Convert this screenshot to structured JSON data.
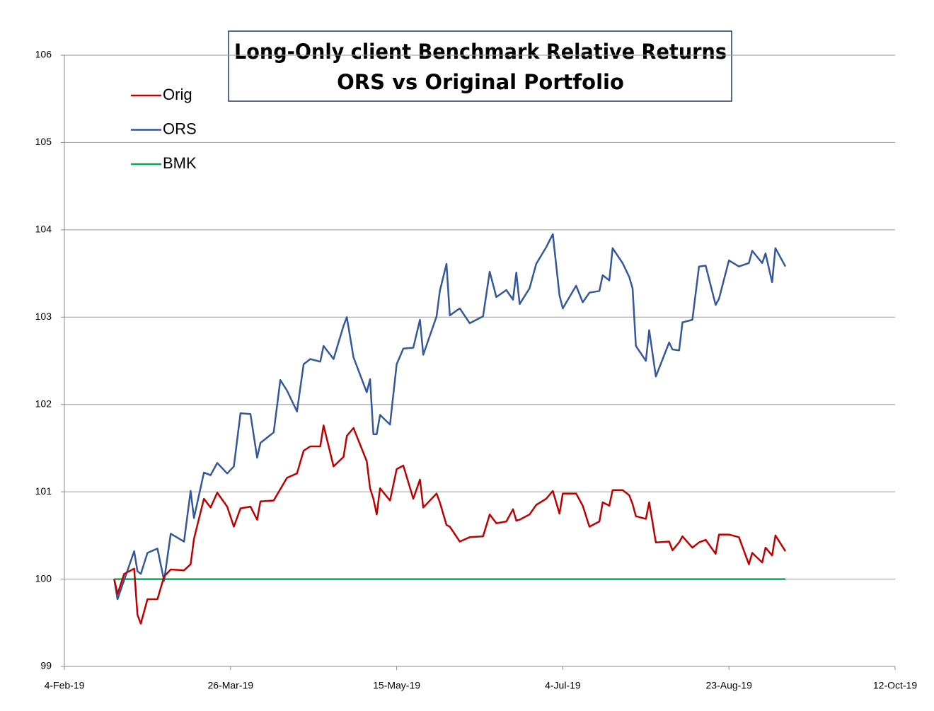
{
  "chart_data": {
    "type": "line",
    "title": "Long-Only client Benchmark Relative Returns",
    "subtitle": "ORS vs Original Portfolio",
    "x": [
      "2019-02-19",
      "2019-02-20",
      "2019-02-22",
      "2019-02-25",
      "2019-02-26",
      "2019-02-27",
      "2019-03-01",
      "2019-03-04",
      "2019-03-06",
      "2019-03-08",
      "2019-03-12",
      "2019-03-14",
      "2019-03-15",
      "2019-03-18",
      "2019-03-20",
      "2019-03-22",
      "2019-03-25",
      "2019-03-27",
      "2019-03-29",
      "2019-04-01",
      "2019-04-03",
      "2019-04-04",
      "2019-04-08",
      "2019-04-10",
      "2019-04-12",
      "2019-04-15",
      "2019-04-17",
      "2019-04-19",
      "2019-04-22",
      "2019-04-23",
      "2019-04-26",
      "2019-04-29",
      "2019-04-30",
      "2019-05-02",
      "2019-05-06",
      "2019-05-07",
      "2019-05-08",
      "2019-05-09",
      "2019-05-10",
      "2019-05-13",
      "2019-05-15",
      "2019-05-17",
      "2019-05-20",
      "2019-05-22",
      "2019-05-23",
      "2019-05-27",
      "2019-05-28",
      "2019-05-30",
      "2019-05-31",
      "2019-06-03",
      "2019-06-06",
      "2019-06-10",
      "2019-06-12",
      "2019-06-14",
      "2019-06-17",
      "2019-06-19",
      "2019-06-20",
      "2019-06-21",
      "2019-06-24",
      "2019-06-26",
      "2019-06-29",
      "2019-07-01",
      "2019-07-03",
      "2019-07-04",
      "2019-07-08",
      "2019-07-10",
      "2019-07-12",
      "2019-07-15",
      "2019-07-16",
      "2019-07-18",
      "2019-07-19",
      "2019-07-22",
      "2019-07-24",
      "2019-07-25",
      "2019-07-26",
      "2019-07-29",
      "2019-07-30",
      "2019-08-01",
      "2019-08-05",
      "2019-08-06",
      "2019-08-08",
      "2019-08-09",
      "2019-08-12",
      "2019-08-14",
      "2019-08-16",
      "2019-08-19",
      "2019-08-20",
      "2019-08-23",
      "2019-08-26",
      "2019-08-29",
      "2019-08-30",
      "2019-09-02",
      "2019-09-03",
      "2019-09-05",
      "2019-09-06",
      "2019-09-09"
    ],
    "series": [
      {
        "name": "Orig",
        "color": "#c00000",
        "values": [
          100,
          99.83,
          100.06,
          100.12,
          99.59,
          99.49,
          99.77,
          99.77,
          100.03,
          100.11,
          100.1,
          100.17,
          100.46,
          100.92,
          100.82,
          100.99,
          100.83,
          100.6,
          100.81,
          100.83,
          100.68,
          100.89,
          100.9,
          101.03,
          101.16,
          101.21,
          101.47,
          101.52,
          101.52,
          101.76,
          101.29,
          101.4,
          101.64,
          101.73,
          101.35,
          101.04,
          100.92,
          100.74,
          101.04,
          100.9,
          101.26,
          101.3,
          100.92,
          101.14,
          100.82,
          100.98,
          100.88,
          100.62,
          100.6,
          100.43,
          100.48,
          100.49,
          100.74,
          100.64,
          100.66,
          100.8,
          100.67,
          100.68,
          100.74,
          100.85,
          100.92,
          101.01,
          100.75,
          100.98,
          100.98,
          100.84,
          100.6,
          100.66,
          100.88,
          100.84,
          101.02,
          101.02,
          100.96,
          100.86,
          100.72,
          100.69,
          100.88,
          100.42,
          100.43,
          100.33,
          100.42,
          100.49,
          100.36,
          100.42,
          100.45,
          100.29,
          100.51,
          100.51,
          100.48,
          100.17,
          100.3,
          100.19,
          100.36,
          100.27,
          100.5,
          100.32
        ]
      },
      {
        "name": "ORS",
        "color": "#34589a",
        "values": [
          100,
          99.77,
          99.99,
          100.32,
          100.09,
          100.06,
          100.3,
          100.35,
          99.98,
          100.52,
          100.43,
          101.01,
          100.7,
          101.22,
          101.19,
          101.33,
          101.21,
          101.29,
          101.9,
          101.89,
          101.39,
          101.56,
          101.68,
          102.28,
          102.16,
          101.92,
          102.46,
          102.52,
          102.49,
          102.67,
          102.52,
          102.9,
          103.0,
          102.54,
          102.14,
          102.29,
          101.66,
          101.66,
          101.88,
          101.77,
          102.46,
          102.64,
          102.65,
          102.97,
          102.57,
          103.01,
          103.3,
          103.61,
          103.02,
          103.1,
          102.93,
          103.01,
          103.52,
          103.23,
          103.31,
          103.2,
          103.51,
          103.15,
          103.33,
          103.61,
          103.8,
          103.95,
          103.25,
          103.1,
          103.36,
          103.17,
          103.28,
          103.3,
          103.48,
          103.42,
          103.79,
          103.62,
          103.46,
          103.33,
          102.67,
          102.5,
          102.85,
          102.32,
          102.71,
          102.63,
          102.62,
          102.94,
          102.97,
          103.58,
          103.59,
          103.14,
          103.21,
          103.65,
          103.58,
          103.62,
          103.76,
          103.62,
          103.73,
          103.4,
          103.79,
          103.58
        ]
      },
      {
        "name": "BMK",
        "color": "#00b050",
        "values": [
          100,
          100,
          100,
          100,
          100,
          100,
          100,
          100,
          100,
          100,
          100,
          100,
          100,
          100,
          100,
          100,
          100,
          100,
          100,
          100,
          100,
          100,
          100,
          100,
          100,
          100,
          100,
          100,
          100,
          100,
          100,
          100,
          100,
          100,
          100,
          100,
          100,
          100,
          100,
          100,
          100,
          100,
          100,
          100,
          100,
          100,
          100,
          100,
          100,
          100,
          100,
          100,
          100,
          100,
          100,
          100,
          100,
          100,
          100,
          100,
          100,
          100,
          100,
          100,
          100,
          100,
          100,
          100,
          100,
          100,
          100,
          100,
          100,
          100,
          100,
          100,
          100,
          100,
          100,
          100,
          100,
          100,
          100,
          100,
          100,
          100,
          100,
          100,
          100,
          100,
          100,
          100,
          100,
          100,
          100,
          100
        ]
      }
    ],
    "xlim": [
      "2019-02-04",
      "2019-10-12"
    ],
    "xticks": [
      {
        "value": "2019-02-04",
        "label": "4-Feb-19"
      },
      {
        "value": "2019-03-26",
        "label": "26-Mar-19"
      },
      {
        "value": "2019-05-15",
        "label": "15-May-19"
      },
      {
        "value": "2019-07-04",
        "label": "4-Jul-19"
      },
      {
        "value": "2019-08-23",
        "label": "23-Aug-19"
      },
      {
        "value": "2019-10-12",
        "label": "12-Oct-19"
      }
    ],
    "ylim": [
      99,
      106
    ],
    "yticks": [
      99,
      100,
      101,
      102,
      103,
      104,
      105,
      106
    ],
    "grid": true,
    "legend": "upper left"
  }
}
